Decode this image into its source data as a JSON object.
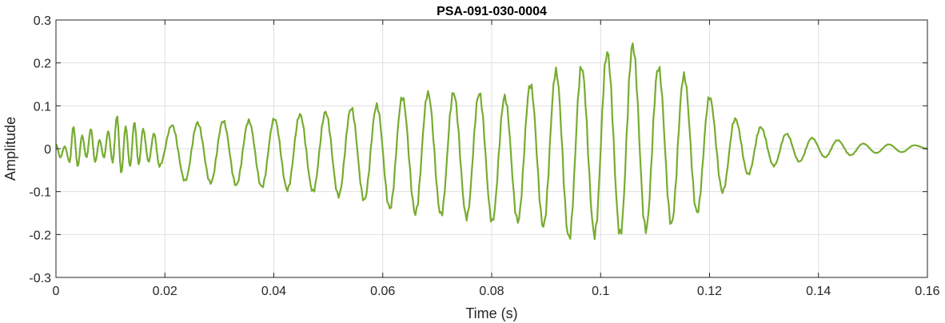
{
  "chart_data": {
    "type": "line",
    "title": "PSA-091-030-0004",
    "xlabel": "Time (s)",
    "ylabel": "Amplitude",
    "xlim": [
      0,
      0.16
    ],
    "ylim": [
      -0.3,
      0.3
    ],
    "x_ticks": [
      0,
      0.02,
      0.04,
      0.06,
      0.08,
      0.1,
      0.12,
      0.14,
      0.16
    ],
    "x_tick_labels": [
      "0",
      "0.02",
      "0.04",
      "0.06",
      "0.08",
      "0.1",
      "0.12",
      "0.14",
      "0.16"
    ],
    "y_ticks": [
      -0.3,
      -0.2,
      -0.1,
      0,
      0.1,
      0.2,
      0.3
    ],
    "y_tick_labels": [
      "-0.3",
      "-0.2",
      "-0.1",
      "0",
      "0.1",
      "0.2",
      "0.3"
    ],
    "grid": true,
    "series": [
      {
        "color": "#77ac30",
        "points": [
          [
            0.0,
            0.01
          ],
          [
            0.0008,
            -0.02
          ],
          [
            0.0016,
            0.005
          ],
          [
            0.0025,
            -0.03
          ],
          [
            0.0032,
            0.05
          ],
          [
            0.004,
            -0.04
          ],
          [
            0.0048,
            0.03
          ],
          [
            0.0056,
            -0.02
          ],
          [
            0.0064,
            0.045
          ],
          [
            0.0072,
            -0.03
          ],
          [
            0.008,
            0.02
          ],
          [
            0.0088,
            -0.02
          ],
          [
            0.0096,
            0.04
          ],
          [
            0.0104,
            -0.03
          ],
          [
            0.0112,
            0.075
          ],
          [
            0.012,
            -0.055
          ],
          [
            0.0128,
            0.05
          ],
          [
            0.0136,
            -0.04
          ],
          [
            0.0144,
            0.06
          ],
          [
            0.0152,
            -0.035
          ],
          [
            0.016,
            0.045
          ],
          [
            0.017,
            -0.03
          ],
          [
            0.018,
            0.035
          ],
          [
            0.019,
            -0.04
          ],
          [
            0.0213,
            0.055
          ],
          [
            0.0237,
            -0.075
          ],
          [
            0.026,
            0.06
          ],
          [
            0.0284,
            -0.08
          ],
          [
            0.0307,
            0.065
          ],
          [
            0.0331,
            -0.085
          ],
          [
            0.0354,
            0.065
          ],
          [
            0.0378,
            -0.09
          ],
          [
            0.0401,
            0.07
          ],
          [
            0.0425,
            -0.095
          ],
          [
            0.0448,
            0.08
          ],
          [
            0.0472,
            -0.1
          ],
          [
            0.0495,
            0.085
          ],
          [
            0.0519,
            -0.11
          ],
          [
            0.0542,
            0.095
          ],
          [
            0.0566,
            -0.12
          ],
          [
            0.0589,
            0.1
          ],
          [
            0.0613,
            -0.14
          ],
          [
            0.0636,
            0.12
          ],
          [
            0.066,
            -0.15
          ],
          [
            0.0683,
            0.13
          ],
          [
            0.0707,
            -0.155
          ],
          [
            0.073,
            0.13
          ],
          [
            0.0754,
            -0.16
          ],
          [
            0.0777,
            0.13
          ],
          [
            0.0801,
            -0.17
          ],
          [
            0.0824,
            0.12
          ],
          [
            0.0848,
            -0.17
          ],
          [
            0.0871,
            0.15
          ],
          [
            0.0895,
            -0.18
          ],
          [
            0.0918,
            0.18
          ],
          [
            0.0942,
            -0.21
          ],
          [
            0.0965,
            0.19
          ],
          [
            0.0989,
            -0.2
          ],
          [
            0.1012,
            0.225
          ],
          [
            0.1036,
            -0.2
          ],
          [
            0.1059,
            0.24
          ],
          [
            0.1083,
            -0.19
          ],
          [
            0.1106,
            0.19
          ],
          [
            0.113,
            -0.175
          ],
          [
            0.1153,
            0.17
          ],
          [
            0.1177,
            -0.15
          ],
          [
            0.12,
            0.12
          ],
          [
            0.1224,
            -0.1
          ],
          [
            0.1247,
            0.07
          ],
          [
            0.1271,
            -0.06
          ],
          [
            0.1294,
            0.05
          ],
          [
            0.1318,
            -0.04
          ],
          [
            0.1341,
            0.035
          ],
          [
            0.1365,
            -0.03
          ],
          [
            0.1388,
            0.025
          ],
          [
            0.1412,
            -0.02
          ],
          [
            0.1435,
            0.02
          ],
          [
            0.1459,
            -0.015
          ],
          [
            0.1482,
            0.012
          ],
          [
            0.1506,
            -0.01
          ],
          [
            0.1529,
            0.01
          ],
          [
            0.1553,
            -0.008
          ],
          [
            0.1576,
            0.008
          ],
          [
            0.16,
            0.0
          ]
        ]
      }
    ]
  }
}
